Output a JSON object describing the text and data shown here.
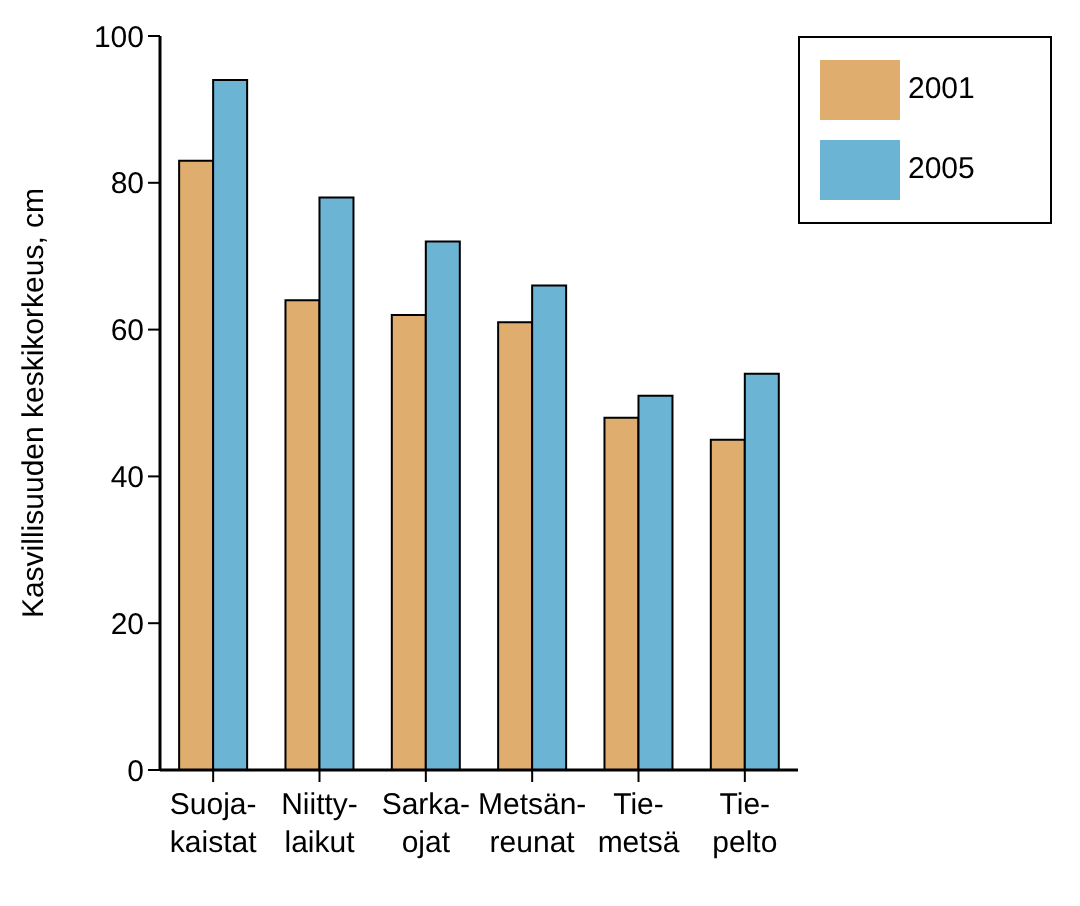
{
  "chart_data": {
    "type": "bar",
    "ylabel": "Kasvillisuuden keskikorkeus, cm",
    "categories": [
      "Suoja-\nkaistat",
      "Niitty-\nlaikut",
      "Sarka-\nojat",
      "Metsän-\nreunat",
      "Tie-\nmetsä",
      "Tie-\npelto"
    ],
    "series": [
      {
        "name": "2001",
        "color": "#dfad6d",
        "values": [
          83,
          64,
          62,
          61,
          48,
          45
        ]
      },
      {
        "name": "2005",
        "color": "#6cb4d4",
        "values": [
          94,
          78,
          72,
          66,
          51,
          54
        ]
      }
    ],
    "ylim": [
      0,
      100
    ],
    "yticks": [
      0,
      20,
      40,
      60,
      80,
      100
    ],
    "grid": false,
    "legend": "top right"
  }
}
